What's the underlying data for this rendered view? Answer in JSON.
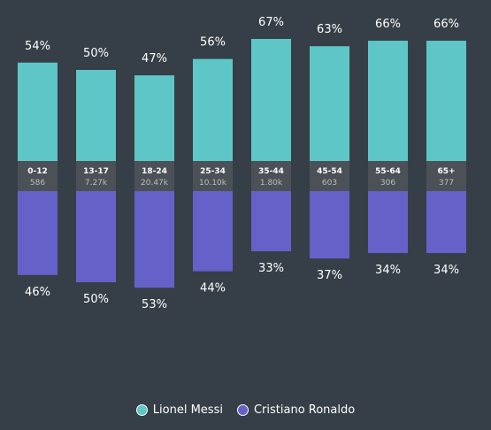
{
  "chart_data": {
    "type": "bar",
    "stacked": "diverging",
    "categories": [
      "0-12",
      "13-17",
      "18-24",
      "25-34",
      "35-44",
      "45-54",
      "55-64",
      "65+"
    ],
    "counts": [
      "586",
      "7.27k",
      "20.47k",
      "10.10k",
      "1.80k",
      "603",
      "306",
      "377"
    ],
    "series": [
      {
        "name": "Lionel Messi",
        "color": "#5ec6c6",
        "values": [
          54,
          50,
          47,
          56,
          67,
          63,
          66,
          66
        ],
        "labels": [
          "54%",
          "50%",
          "47%",
          "56%",
          "67%",
          "63%",
          "66%",
          "66%"
        ]
      },
      {
        "name": "Cristiano Ronaldo",
        "color": "#6561c8",
        "values": [
          46,
          50,
          53,
          44,
          33,
          37,
          34,
          34
        ],
        "labels": [
          "46%",
          "50%",
          "53%",
          "44%",
          "33%",
          "37%",
          "34%",
          "34%"
        ]
      }
    ],
    "legend_position": "bottom-center",
    "grid": false
  }
}
